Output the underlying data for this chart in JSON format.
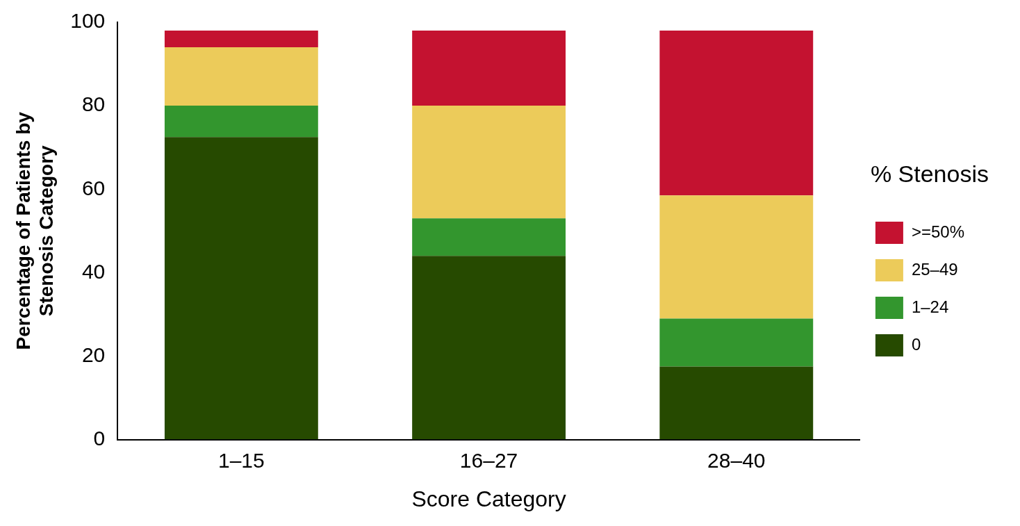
{
  "chart_data": {
    "type": "bar",
    "stacked": true,
    "xlabel": "Score Category",
    "ylabel": "Percentage of Patients by Stenosis Category",
    "legend_title": "% Stenosis",
    "legend": "right",
    "grid": false,
    "categories": [
      "1–15",
      "16–27",
      "28–40"
    ],
    "ylim": [
      0,
      100
    ],
    "yticks": [
      0,
      20,
      40,
      60,
      80,
      100
    ],
    "series": [
      {
        "name": "0",
        "color": "#264a00",
        "values": [
          72.5,
          44,
          17.5
        ]
      },
      {
        "name": "1–24",
        "color": "#33962e",
        "values": [
          7.5,
          9,
          11.5
        ]
      },
      {
        "name": "25–49",
        "color": "#eccb5a",
        "values": [
          14,
          27,
          29.5
        ]
      },
      {
        "name": ">=50%",
        "color": "#c41230",
        "values": [
          4,
          18,
          39.5
        ]
      }
    ]
  }
}
